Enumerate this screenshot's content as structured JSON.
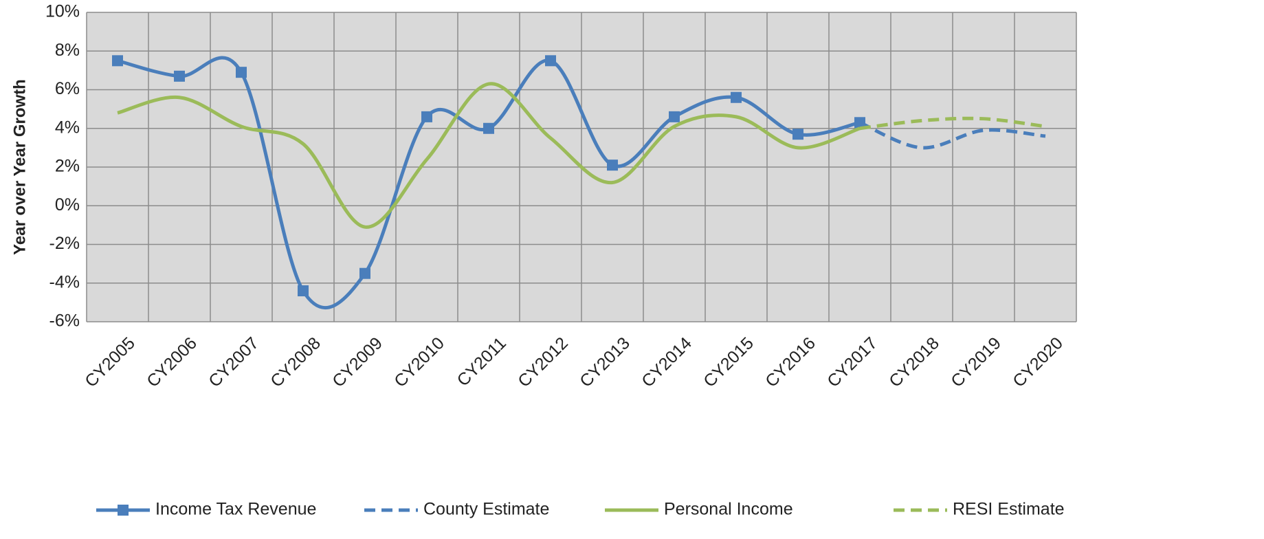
{
  "chart_data": {
    "type": "line",
    "y_label": "Year over Year Growth",
    "categories": [
      "CY2005",
      "CY2006",
      "CY2007",
      "CY2008",
      "CY2009",
      "CY2010",
      "CY2011",
      "CY2012",
      "CY2013",
      "CY2014",
      "CY2015",
      "CY2016",
      "CY2017",
      "CY2018",
      "CY2019",
      "CY2020"
    ],
    "series": [
      {
        "name": "Income Tax Revenue",
        "color": "#4a7ebb",
        "marker": "square",
        "dashed": false,
        "values": [
          7.5,
          6.7,
          6.9,
          -4.4,
          -3.5,
          4.6,
          4.0,
          7.5,
          2.1,
          4.6,
          5.6,
          3.7,
          4.3,
          null,
          null,
          null
        ]
      },
      {
        "name": "County Estimate",
        "color": "#4a7ebb",
        "dashed": true,
        "values": [
          null,
          null,
          null,
          null,
          null,
          null,
          null,
          null,
          null,
          null,
          null,
          null,
          4.3,
          3.0,
          3.9,
          3.6
        ]
      },
      {
        "name": "Personal Income",
        "color": "#9bbb59",
        "dashed": false,
        "values": [
          4.8,
          5.6,
          4.1,
          3.2,
          -1.1,
          2.4,
          6.3,
          3.5,
          1.2,
          4.1,
          4.6,
          3.0,
          4.0,
          null,
          null,
          null
        ]
      },
      {
        "name": "RESI Estimate",
        "color": "#9bbb59",
        "dashed": true,
        "values": [
          null,
          null,
          null,
          null,
          null,
          null,
          null,
          null,
          null,
          null,
          null,
          null,
          4.0,
          4.4,
          4.5,
          4.1
        ]
      }
    ],
    "ylim": [
      -6,
      10
    ],
    "yticks": [
      {
        "value": -6,
        "label": "-6%"
      },
      {
        "value": -4,
        "label": "-4%"
      },
      {
        "value": -2,
        "label": "-2%"
      },
      {
        "value": 0,
        "label": "0%"
      },
      {
        "value": 2,
        "label": "2%"
      },
      {
        "value": 4,
        "label": "4%"
      },
      {
        "value": 6,
        "label": "6%"
      },
      {
        "value": 8,
        "label": "8%"
      },
      {
        "value": 10,
        "label": "10%"
      }
    ],
    "grid": true,
    "legend": "bottom"
  }
}
